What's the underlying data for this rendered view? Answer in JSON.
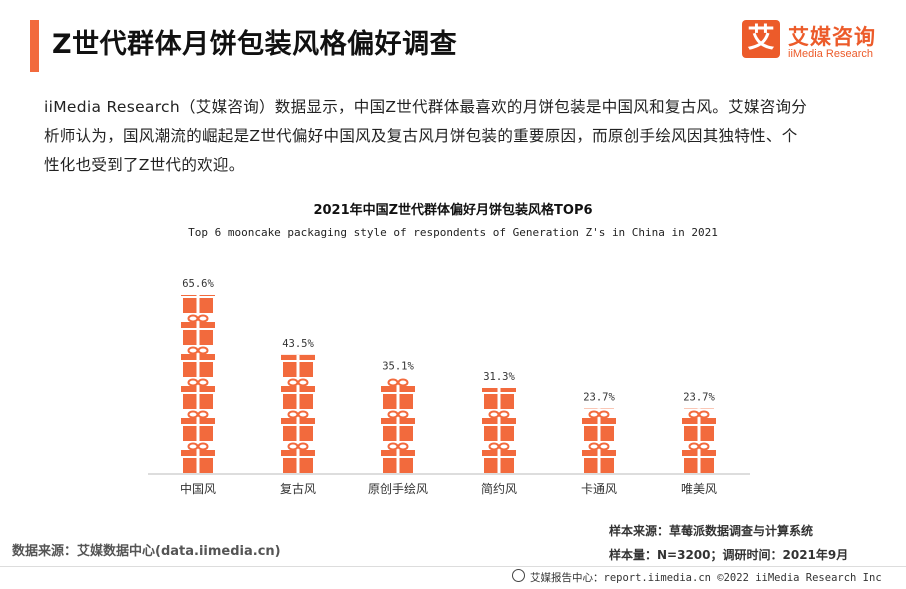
{
  "header": {
    "title": "Z世代群体月饼包装风格偏好调查",
    "logo_mark": "艾",
    "logo_cn": "艾媒咨询",
    "logo_en": "iiMedia Research"
  },
  "intro": {
    "line1": "iiMedia Research（艾媒咨询）数据显示，中国Z世代群体最喜欢的月饼包装是中国风和复古风。艾媒咨询分",
    "line2": "析师认为，国风潮流的崛起是Z世代偏好中国风及复古风月饼包装的重要原因，而原创手绘风因其独特性、个",
    "line3": "性化也受到了Z世代的欢迎。"
  },
  "chart_data": {
    "type": "bar",
    "title": "2021年中国Z世代群体偏好月饼包装风格TOP6",
    "subtitle": "Top 6 mooncake packaging style of respondents of Generation Z's in China  in 2021",
    "categories": [
      "中国风",
      "复古风",
      "原创手绘风",
      "简约风",
      "卡通风",
      "唯美风"
    ],
    "values": [
      65.6,
      43.5,
      35.1,
      31.3,
      23.7,
      23.7
    ],
    "value_labels": [
      "65.6%",
      "43.5%",
      "35.1%",
      "31.3%",
      "23.7%",
      "23.7%"
    ],
    "ylim": [
      0,
      70
    ],
    "grid": false,
    "bar_style": "stacked gift-box icons",
    "bar_color": "#f26a3d"
  },
  "footer": {
    "source": "数据来源：艾媒数据中心(data.iimedia.cn)",
    "sample_source": "样本来源：草莓派数据调查与计算系统",
    "sample_size": "样本量：N=3200；调研时间：2021年9月",
    "bottom": "艾媒报告中心：report.iimedia.cn  ©2022  iiMedia Research  Inc"
  }
}
